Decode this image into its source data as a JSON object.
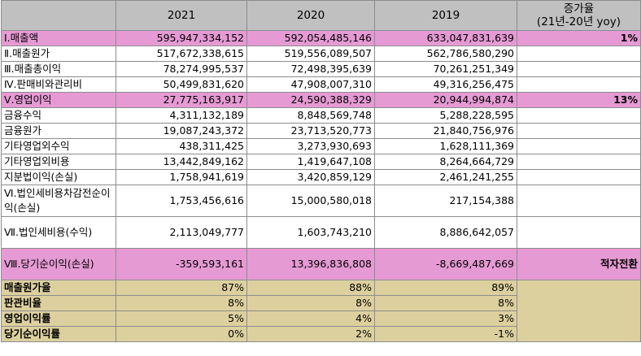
{
  "header": {
    "col_2021": "2021",
    "col_2020": "2020",
    "col_2019": "2019",
    "growth_line1": "증가율",
    "growth_line2": "(21년-20년 yoy)"
  },
  "rows": [
    {
      "label": "Ⅰ.매출액",
      "v2021": "595,947,334,152",
      "v2020": "592,054,485,146",
      "v2019": "633,047,831,639",
      "growth": "1%"
    },
    {
      "label": "Ⅱ.매출원가",
      "v2021": "517,672,338,615",
      "v2020": "519,556,089,507",
      "v2019": "562,786,580,290",
      "growth": ""
    },
    {
      "label": "Ⅲ.매출총이익",
      "v2021": "78,274,995,537",
      "v2020": "72,498,395,639",
      "v2019": "70,261,251,349",
      "growth": ""
    },
    {
      "label": "Ⅳ.판매비와관리비",
      "v2021": "50,499,831,620",
      "v2020": "47,908,007,310",
      "v2019": "49,316,256,475",
      "growth": ""
    },
    {
      "label": "Ⅴ.영업이익",
      "v2021": "27,775,163,917",
      "v2020": "24,590,388,329",
      "v2019": "20,944,994,874",
      "growth": "13%"
    },
    {
      "label": "금융수익",
      "v2021": "4,311,132,189",
      "v2020": "8,848,569,748",
      "v2019": "5,288,228,595",
      "growth": ""
    },
    {
      "label": "금융원가",
      "v2021": "19,087,243,372",
      "v2020": "23,713,520,773",
      "v2019": "21,840,756,976",
      "growth": ""
    },
    {
      "label": "기타영업외수익",
      "v2021": "438,311,425",
      "v2020": "3,273,930,693",
      "v2019": "1,628,111,369",
      "growth": ""
    },
    {
      "label": "기타영업외비용",
      "v2021": "13,442,849,162",
      "v2020": "1,419,647,108",
      "v2019": "8,264,664,729",
      "growth": ""
    },
    {
      "label": "지분법이익(손실)",
      "v2021": "1,758,941,619",
      "v2020": "3,420,859,129",
      "v2019": "2,461,241,255",
      "growth": ""
    },
    {
      "label": "Ⅵ.법인세비용차감전순이익(손실)",
      "v2021": "1,753,456,616",
      "v2020": "15,000,580,018",
      "v2019": "217,154,388",
      "growth": ""
    },
    {
      "label": "Ⅶ.법인세비용(수익)",
      "v2021": "2,113,049,777",
      "v2020": "1,603,743,210",
      "v2019": "8,886,642,057",
      "growth": ""
    },
    {
      "label": "Ⅷ.당기순이익(손실)",
      "v2021": "-359,593,161",
      "v2020": "13,396,836,808",
      "v2019": "-8,669,487,669",
      "growth": "적자전환"
    }
  ],
  "ratios": [
    {
      "label": "매출원가율",
      "v2021": "87%",
      "v2020": "88%",
      "v2019": "89%"
    },
    {
      "label": "판관비율",
      "v2021": "8%",
      "v2020": "8%",
      "v2019": "8%"
    },
    {
      "label": "영업이익률",
      "v2021": "5%",
      "v2020": "4%",
      "v2019": "3%"
    },
    {
      "label": "당기순이익률",
      "v2021": "0%",
      "v2020": "2%",
      "v2019": "-1%"
    }
  ],
  "colors": {
    "header_bg": "#c0c0c0",
    "highlight_pink": "#e59ad4",
    "ratio_tan": "#ddd09f"
  }
}
